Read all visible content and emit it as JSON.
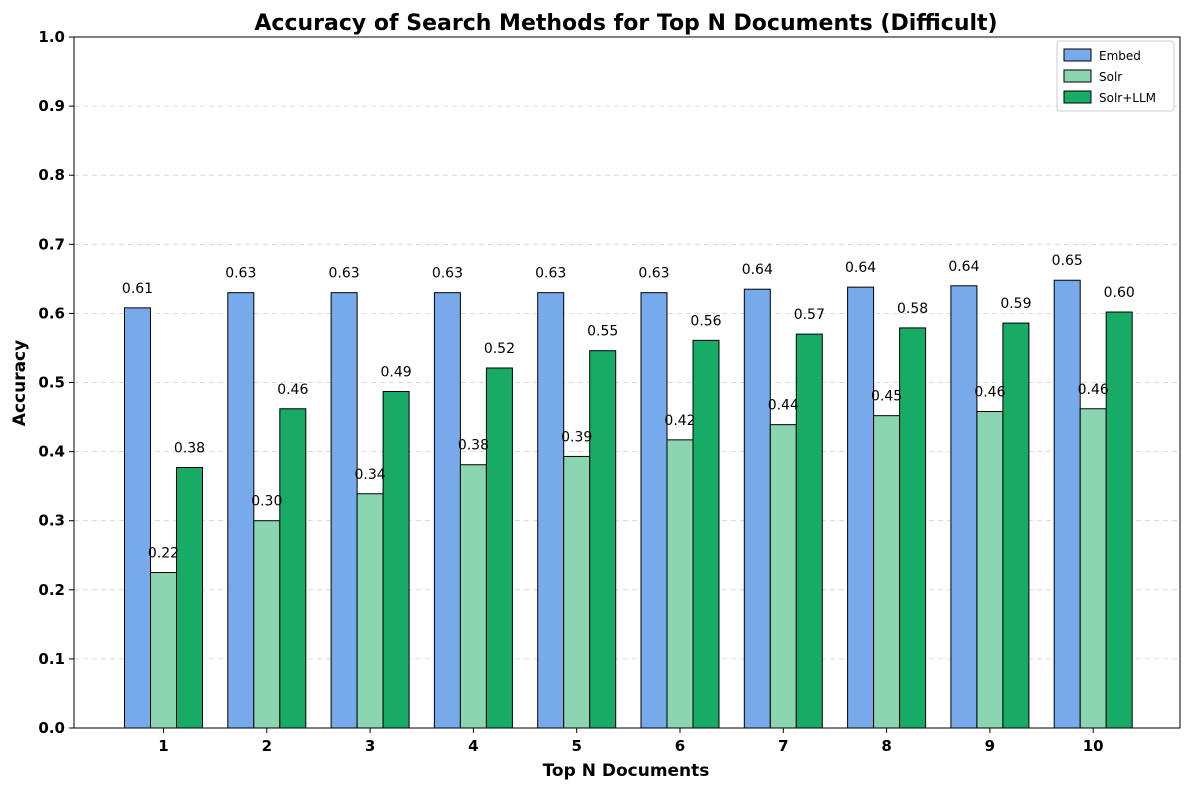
{
  "chart_data": {
    "type": "bar",
    "title": "Accuracy of Search Methods for Top N Documents (Difficult)",
    "xlabel": "Top N Documents",
    "ylabel": "Accuracy",
    "categories": [
      "1",
      "2",
      "3",
      "4",
      "5",
      "6",
      "7",
      "8",
      "9",
      "10"
    ],
    "ylim": [
      0,
      1.0
    ],
    "yticks": [
      "0.0",
      "0.1",
      "0.2",
      "0.3",
      "0.4",
      "0.5",
      "0.6",
      "0.7",
      "0.8",
      "0.9",
      "1.0"
    ],
    "grid": "horizontal dashed",
    "legend_position": "top-right",
    "series": [
      {
        "name": "Embed",
        "color": "#77aaea",
        "values": [
          0.608,
          0.63,
          0.63,
          0.63,
          0.63,
          0.63,
          0.635,
          0.638,
          0.64,
          0.648
        ],
        "labels": [
          "0.61",
          "0.63",
          "0.63",
          "0.63",
          "0.63",
          "0.63",
          "0.64",
          "0.64",
          "0.64",
          "0.65"
        ]
      },
      {
        "name": "Solr",
        "color": "#8bd5b1",
        "values": [
          0.225,
          0.3,
          0.339,
          0.381,
          0.393,
          0.417,
          0.439,
          0.452,
          0.458,
          0.462
        ],
        "labels": [
          "0.22",
          "0.30",
          "0.34",
          "0.38",
          "0.39",
          "0.42",
          "0.44",
          "0.45",
          "0.46",
          "0.46"
        ]
      },
      {
        "name": "Solr+LLM",
        "color": "#17ab66",
        "values": [
          0.377,
          0.462,
          0.487,
          0.521,
          0.546,
          0.561,
          0.57,
          0.579,
          0.586,
          0.602
        ],
        "labels": [
          "0.38",
          "0.46",
          "0.49",
          "0.52",
          "0.55",
          "0.56",
          "0.57",
          "0.58",
          "0.59",
          "0.60"
        ]
      }
    ]
  }
}
